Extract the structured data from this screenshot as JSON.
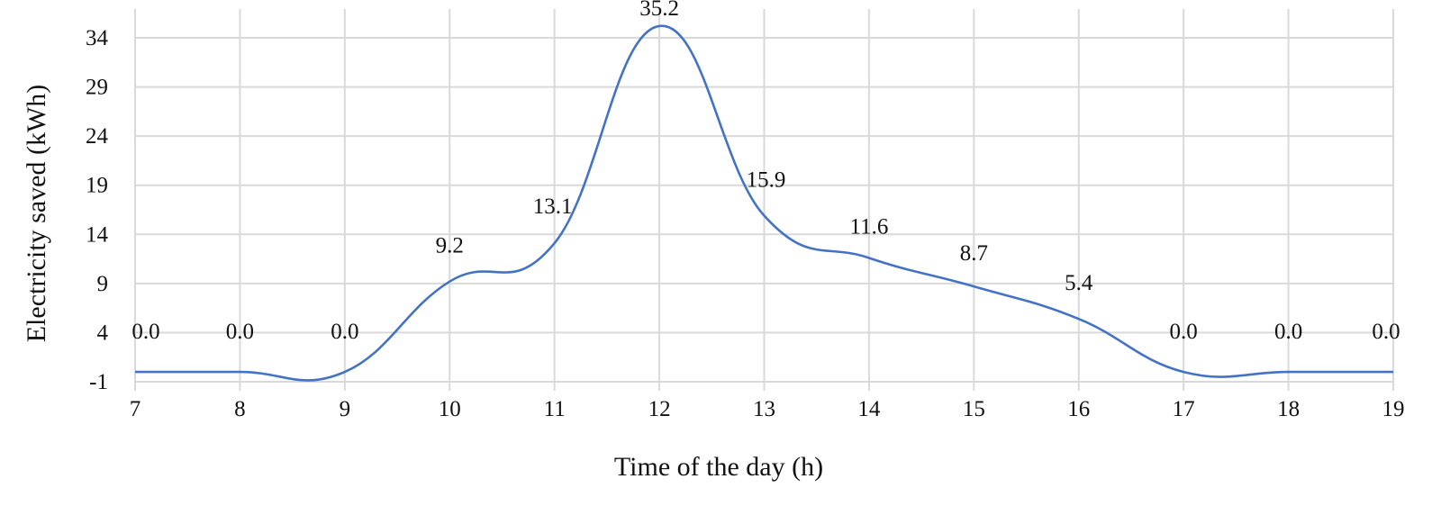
{
  "chart_data": {
    "type": "line",
    "xlabel": "Time of the day (h)",
    "ylabel": "Electricity saved (kWh)",
    "x": [
      7,
      8,
      9,
      10,
      11,
      12,
      13,
      14,
      15,
      16,
      17,
      18,
      19
    ],
    "x_ticks": [
      "7",
      "8",
      "9",
      "10",
      "11",
      "12",
      "13",
      "14",
      "15",
      "16",
      "17",
      "18",
      "19"
    ],
    "y_ticks": [
      "-1",
      "4",
      "9",
      "14",
      "19",
      "24",
      "29",
      "34"
    ],
    "ylim": [
      -1,
      36
    ],
    "xlim": [
      7,
      19
    ],
    "grid": true,
    "smooth": true,
    "series": [
      {
        "color": "#4472c4",
        "values": [
          0.0,
          0.0,
          0.0,
          9.2,
          13.1,
          35.2,
          15.9,
          11.6,
          8.7,
          5.4,
          0.0,
          0.0,
          0.0
        ],
        "data_labels": [
          "0.0",
          "0.0",
          "0.0",
          "9.2",
          "13.1",
          "35.2",
          "15.9",
          "11.6",
          "8.7",
          "5.4",
          "0.0",
          "0.0",
          "0.0"
        ]
      }
    ]
  }
}
